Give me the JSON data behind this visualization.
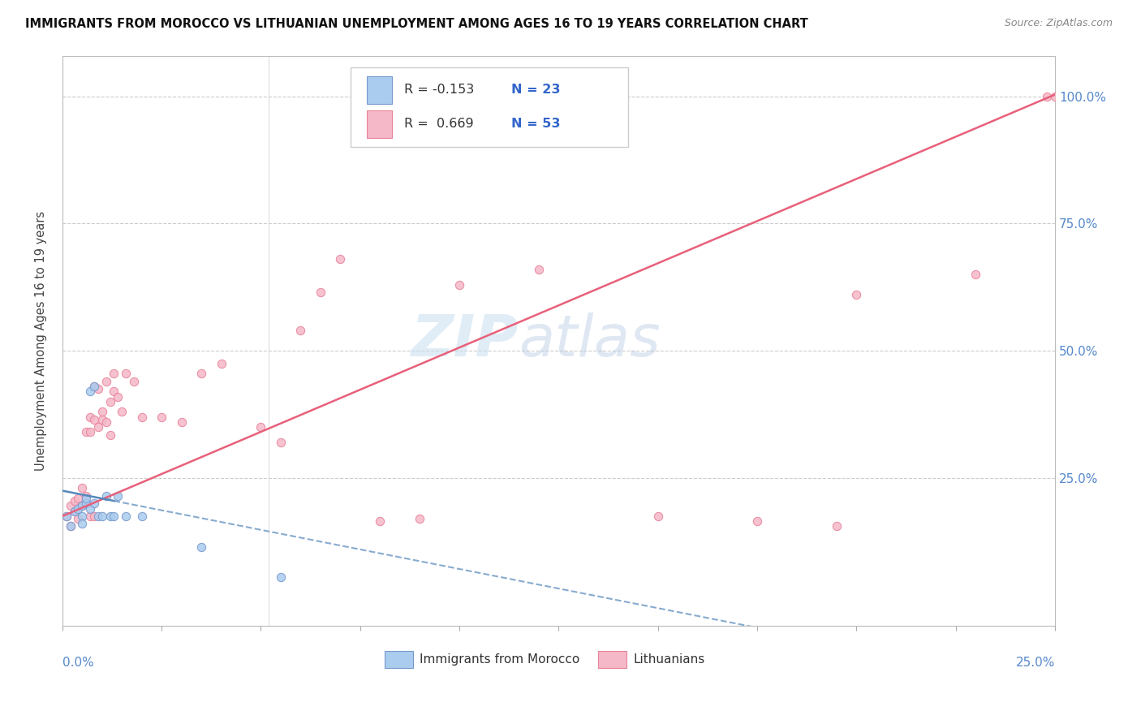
{
  "title": "IMMIGRANTS FROM MOROCCO VS LITHUANIAN UNEMPLOYMENT AMONG AGES 16 TO 19 YEARS CORRELATION CHART",
  "source": "Source: ZipAtlas.com",
  "ylabel": "Unemployment Among Ages 16 to 19 years",
  "xlim": [
    0.0,
    0.25
  ],
  "ylim": [
    -0.04,
    1.08
  ],
  "yticks": [
    0.0,
    0.25,
    0.5,
    0.75,
    1.0
  ],
  "ytick_labels_right": [
    "",
    "25.0%",
    "50.0%",
    "75.0%",
    "100.0%"
  ],
  "legend_blue_r": "R = -0.153",
  "legend_blue_n": "N = 23",
  "legend_pink_r": "R =  0.669",
  "legend_pink_n": "N = 53",
  "blue_fill": "#aaccee",
  "blue_edge": "#7799cc",
  "pink_fill": "#f5b8c8",
  "pink_edge": "#e8829a",
  "blue_line_color": "#5588bb",
  "pink_line_color": "#e8607a",
  "watermark_zip": "ZIP",
  "watermark_atlas": "atlas",
  "blue_points_x": [
    0.001,
    0.002,
    0.003,
    0.004,
    0.005,
    0.005,
    0.005,
    0.006,
    0.006,
    0.007,
    0.007,
    0.008,
    0.008,
    0.009,
    0.01,
    0.011,
    0.012,
    0.013,
    0.014,
    0.016,
    0.02,
    0.035,
    0.055
  ],
  "blue_points_y": [
    0.175,
    0.155,
    0.185,
    0.19,
    0.195,
    0.175,
    0.16,
    0.2,
    0.21,
    0.19,
    0.42,
    0.2,
    0.43,
    0.175,
    0.175,
    0.215,
    0.175,
    0.175,
    0.215,
    0.175,
    0.175,
    0.115,
    0.055
  ],
  "pink_points_x": [
    0.001,
    0.002,
    0.002,
    0.003,
    0.003,
    0.004,
    0.004,
    0.005,
    0.005,
    0.006,
    0.006,
    0.006,
    0.007,
    0.007,
    0.007,
    0.008,
    0.008,
    0.008,
    0.009,
    0.009,
    0.01,
    0.01,
    0.011,
    0.011,
    0.012,
    0.012,
    0.013,
    0.013,
    0.014,
    0.015,
    0.016,
    0.018,
    0.02,
    0.025,
    0.03,
    0.035,
    0.04,
    0.05,
    0.055,
    0.06,
    0.065,
    0.07,
    0.08,
    0.09,
    0.1,
    0.12,
    0.15,
    0.175,
    0.195,
    0.2,
    0.23,
    0.248,
    0.25
  ],
  "pink_points_y": [
    0.175,
    0.155,
    0.195,
    0.185,
    0.205,
    0.17,
    0.21,
    0.195,
    0.23,
    0.2,
    0.215,
    0.34,
    0.175,
    0.34,
    0.37,
    0.175,
    0.365,
    0.43,
    0.35,
    0.425,
    0.365,
    0.38,
    0.36,
    0.44,
    0.335,
    0.4,
    0.42,
    0.455,
    0.41,
    0.38,
    0.455,
    0.44,
    0.37,
    0.37,
    0.36,
    0.455,
    0.475,
    0.35,
    0.32,
    0.54,
    0.615,
    0.68,
    0.165,
    0.17,
    0.63,
    0.66,
    0.175,
    0.165,
    0.155,
    0.61,
    0.65,
    1.0,
    1.0
  ]
}
